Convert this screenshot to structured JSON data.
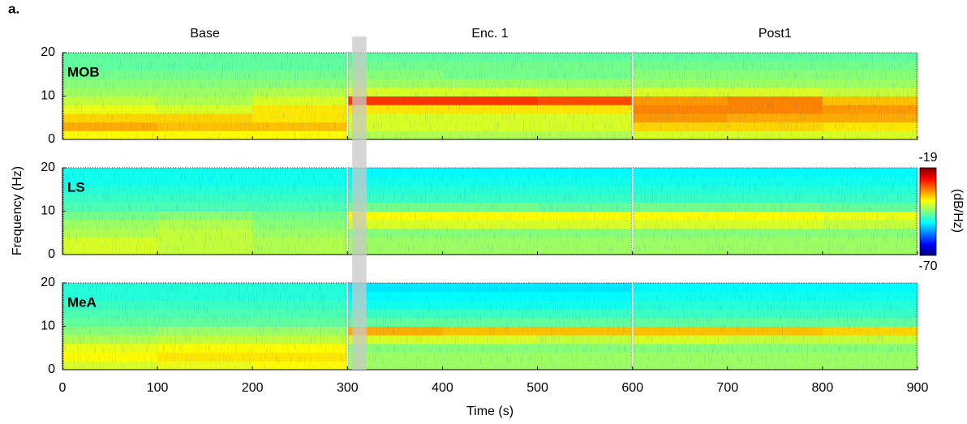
{
  "chart_data": {
    "type": "heatmap",
    "title": "a.",
    "xlabel": "Time (s)",
    "ylabel": "Frequency (Hz)",
    "xlim": [
      0,
      900
    ],
    "xticks": [
      0,
      100,
      200,
      300,
      400,
      500,
      600,
      700,
      800,
      900
    ],
    "ylim": [
      0,
      20
    ],
    "yticks": [
      0,
      10,
      20
    ],
    "segments": [
      {
        "label": "Base",
        "range": [
          0,
          300
        ]
      },
      {
        "label": "Enc. 1",
        "range": [
          300,
          600
        ]
      },
      {
        "label": "Post1",
        "range": [
          600,
          900
        ]
      }
    ],
    "shaded": [
      305,
      320
    ],
    "colormap": "jet",
    "colorbar": {
      "label": "(dB/Hz)",
      "clim": [
        -70,
        -19
      ],
      "ticks": [
        -19,
        -70
      ]
    },
    "time_bins": [
      0,
      100,
      200,
      300,
      400,
      500,
      600,
      700,
      800,
      900
    ],
    "freq_bins": [
      0,
      2,
      4,
      6,
      8,
      10,
      12,
      14,
      16,
      18,
      20
    ],
    "panels": [
      {
        "name": "MOB",
        "values": [
          [
            -38,
            -38,
            -38,
            -42,
            -42,
            -42,
            -40,
            -40,
            -40
          ],
          [
            -34,
            -35,
            -35,
            -40,
            -40,
            -40,
            -36,
            -36,
            -37
          ],
          [
            -36,
            -36,
            -37,
            -40,
            -40,
            -40,
            -33,
            -34,
            -34
          ],
          [
            -39,
            -40,
            -37,
            -37,
            -37,
            -37,
            -32,
            -32,
            -33
          ],
          [
            -41,
            -42,
            -40,
            -28,
            -28,
            -29,
            -33,
            -32,
            -35
          ],
          [
            -43,
            -43,
            -42,
            -40,
            -40,
            -41,
            -40,
            -40,
            -41
          ],
          [
            -44,
            -44,
            -44,
            -43,
            -43,
            -43,
            -43,
            -43,
            -43
          ],
          [
            -45,
            -45,
            -45,
            -44,
            -45,
            -45,
            -44,
            -44,
            -44
          ],
          [
            -46,
            -46,
            -46,
            -45,
            -45,
            -45,
            -45,
            -45,
            -45
          ],
          [
            -46,
            -46,
            -46,
            -46,
            -46,
            -46,
            -46,
            -46,
            -46
          ]
        ]
      },
      {
        "name": "LS",
        "values": [
          [
            -40,
            -41,
            -42,
            -43,
            -43,
            -43,
            -43,
            -43,
            -43
          ],
          [
            -40,
            -41,
            -42,
            -43,
            -43,
            -43,
            -43,
            -43,
            -43
          ],
          [
            -42,
            -41,
            -43,
            -44,
            -44,
            -44,
            -44,
            -44,
            -44
          ],
          [
            -43,
            -42,
            -44,
            -40,
            -40,
            -40,
            -40,
            -40,
            -41
          ],
          [
            -45,
            -44,
            -45,
            -38,
            -38,
            -38,
            -38,
            -38,
            -39
          ],
          [
            -47,
            -47,
            -47,
            -45,
            -45,
            -46,
            -45,
            -45,
            -46
          ],
          [
            -48,
            -48,
            -48,
            -48,
            -48,
            -48,
            -48,
            -48,
            -48
          ],
          [
            -49,
            -49,
            -49,
            -49,
            -49,
            -49,
            -49,
            -49,
            -49
          ],
          [
            -50,
            -50,
            -50,
            -50,
            -50,
            -50,
            -50,
            -50,
            -50
          ],
          [
            -50,
            -50,
            -50,
            -51,
            -51,
            -51,
            -51,
            -51,
            -51
          ]
        ]
      },
      {
        "name": "MeA",
        "values": [
          [
            -40,
            -39,
            -38,
            -43,
            -43,
            -43,
            -43,
            -43,
            -43
          ],
          [
            -38,
            -37,
            -37,
            -43,
            -43,
            -43,
            -43,
            -43,
            -43
          ],
          [
            -39,
            -38,
            -38,
            -44,
            -44,
            -44,
            -44,
            -44,
            -44
          ],
          [
            -42,
            -41,
            -41,
            -40,
            -40,
            -41,
            -40,
            -41,
            -41
          ],
          [
            -44,
            -43,
            -43,
            -34,
            -35,
            -35,
            -35,
            -35,
            -36
          ],
          [
            -46,
            -46,
            -46,
            -46,
            -46,
            -46,
            -46,
            -46,
            -46
          ],
          [
            -47,
            -47,
            -47,
            -48,
            -48,
            -48,
            -48,
            -48,
            -48
          ],
          [
            -48,
            -48,
            -48,
            -50,
            -50,
            -50,
            -49,
            -49,
            -49
          ],
          [
            -49,
            -49,
            -49,
            -51,
            -51,
            -51,
            -50,
            -50,
            -50
          ],
          [
            -49,
            -49,
            -49,
            -52,
            -52,
            -52,
            -51,
            -51,
            -51
          ]
        ]
      }
    ]
  }
}
